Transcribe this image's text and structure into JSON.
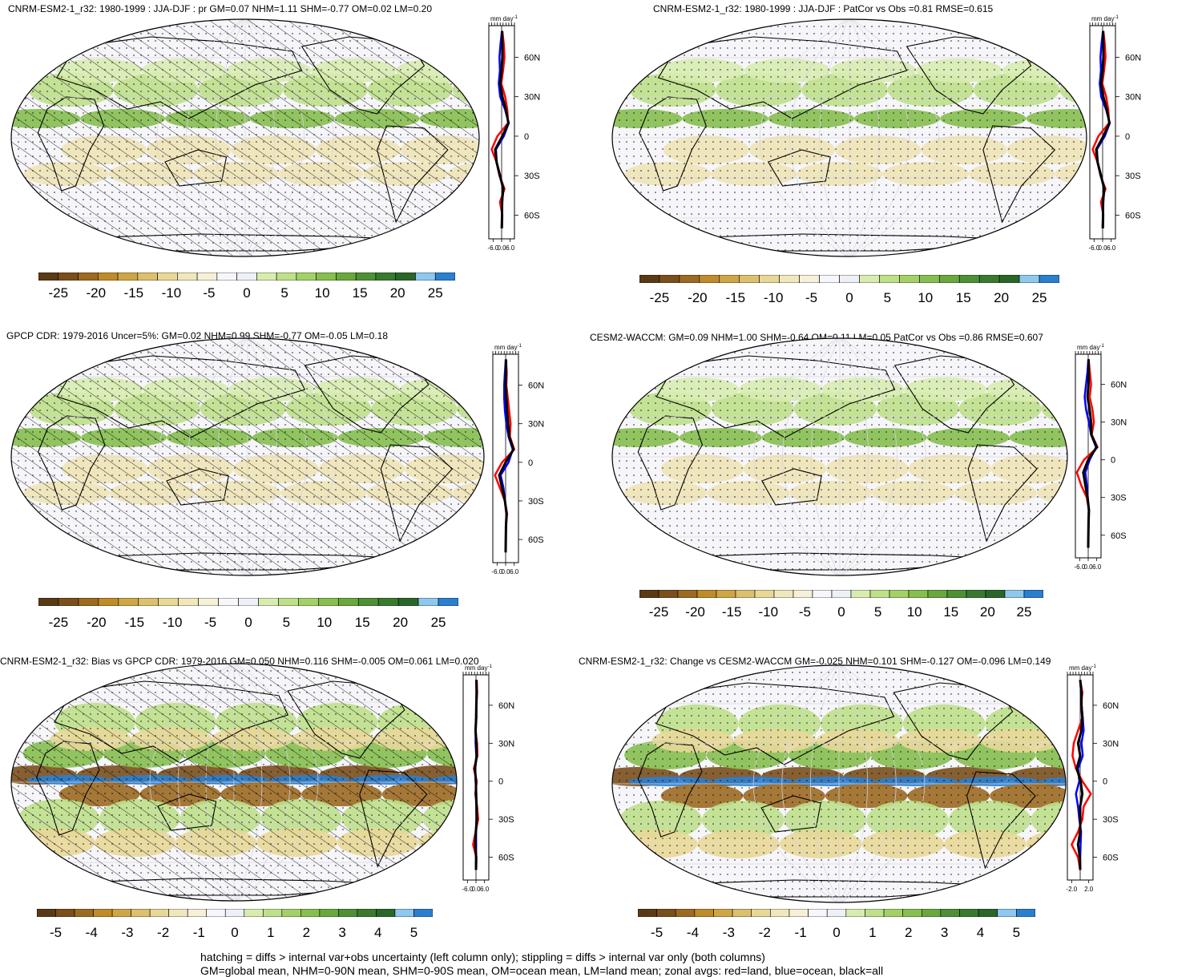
{
  "footer": {
    "line1": "hatching = diffs > internal var+obs uncertainty (left column only); stippling = diffs > internal var only (both columns)",
    "line2": "GM=global mean, NHM=0-90N mean, SHM=0-90S mean, OM=ocean mean, LM=land mean; zonal avgs: red=land, blue=ocean, black=all"
  },
  "colors": {
    "land": "#ff0000",
    "ocean": "#0000ff",
    "all": "#000000",
    "palette": [
      "#5a3a14",
      "#7a4f1c",
      "#9c6a22",
      "#c08b2a",
      "#cfa645",
      "#dcc06e",
      "#e8d898",
      "#f1e7bd",
      "#f6f0d8",
      "#f7f7fb",
      "#eef0f8",
      "#d8ecb0",
      "#bfe08a",
      "#a3d168",
      "#86bf4f",
      "#6aa83e",
      "#4f9036",
      "#3a7a2f",
      "#2a6628",
      "#8ec8ee",
      "#2b7fd0"
    ]
  },
  "panels": [
    {
      "id": "p1",
      "title": "CNRM-ESM2-1_r32: 1980-1999 : JJA-DJF : pr GM=0.07 NHM=1.11 SHM=-0.77 OM=0.02 LM=0.20",
      "units": "mm day",
      "units_sup": "-1",
      "colorbar_labels": [
        "-25",
        "-20",
        "-15",
        "-10",
        "-5",
        "0",
        "5",
        "10",
        "15",
        "20",
        "25"
      ],
      "lat_labels": [
        "60N",
        "30N",
        "0",
        "30S",
        "60S"
      ],
      "x_ticks": [
        "-6.0",
        "0.0",
        "6.0"
      ],
      "chart_data": {
        "type": "line",
        "xlim": [
          -9,
          9
        ],
        "ylim": [
          -78,
          84
        ],
        "series": [
          {
            "color_key": "land",
            "lat": [
              80,
              70,
              60,
              50,
              40,
              30,
              20,
              10,
              0,
              -10,
              -20,
              -30,
              -40,
              -50,
              -60,
              -70
            ],
            "values": [
              0.5,
              1.5,
              2.0,
              1.0,
              -0.2,
              2.5,
              4.0,
              4.5,
              -3.0,
              -7.0,
              -3.5,
              -1.5,
              2.0,
              -1.2,
              0.5,
              0.2
            ]
          },
          {
            "color_key": "ocean",
            "lat": [
              80,
              70,
              60,
              50,
              40,
              30,
              20,
              10,
              0,
              -10,
              -20,
              -30,
              -40,
              -50,
              -60,
              -70
            ],
            "values": [
              0.2,
              -0.8,
              -1.5,
              -1.2,
              -2.0,
              -1.0,
              2.5,
              5.0,
              1.5,
              -4.0,
              -3.5,
              -1.0,
              1.0,
              0.5,
              0.3,
              0.0
            ]
          },
          {
            "color_key": "all",
            "lat": [
              80,
              70,
              60,
              50,
              40,
              30,
              20,
              10,
              0,
              -10,
              -20,
              -30,
              -40,
              -50,
              -60,
              -70
            ],
            "values": [
              0.3,
              0.5,
              0.5,
              0.0,
              -1.0,
              0.5,
              3.0,
              4.8,
              0.5,
              -4.5,
              -3.5,
              -1.2,
              1.2,
              0.2,
              0.3,
              0.1
            ]
          }
        ]
      }
    },
    {
      "id": "p2",
      "title": "CNRM-ESM2-1_r32: 1980-1999 : JJA-DJF : PatCor vs Obs =0.81 RMSE=0.615",
      "units": "mm day",
      "units_sup": "-1",
      "colorbar_labels": [
        "-25",
        "-20",
        "-15",
        "-10",
        "-5",
        "0",
        "5",
        "10",
        "15",
        "20",
        "25"
      ],
      "lat_labels": [
        "60N",
        "30N",
        "0",
        "30S",
        "60S"
      ],
      "x_ticks": [
        "-6.0",
        "0.0",
        "6.0"
      ],
      "chart_data": {
        "type": "line",
        "xlim": [
          -9,
          9
        ],
        "ylim": [
          -78,
          84
        ],
        "series": [
          {
            "color_key": "land",
            "lat": [
              80,
              70,
              60,
              50,
              40,
              30,
              20,
              10,
              0,
              -10,
              -20,
              -30,
              -40,
              -50,
              -60,
              -70
            ],
            "values": [
              0.5,
              1.5,
              2.0,
              1.0,
              -0.2,
              2.5,
              4.0,
              4.5,
              -3.0,
              -7.0,
              -3.5,
              -1.5,
              2.0,
              -1.2,
              0.5,
              0.2
            ]
          },
          {
            "color_key": "ocean",
            "lat": [
              80,
              70,
              60,
              50,
              40,
              30,
              20,
              10,
              0,
              -10,
              -20,
              -30,
              -40,
              -50,
              -60,
              -70
            ],
            "values": [
              0.2,
              -0.8,
              -1.5,
              -1.2,
              -2.0,
              -1.0,
              2.5,
              5.0,
              1.5,
              -4.0,
              -3.5,
              -1.0,
              1.0,
              0.5,
              0.3,
              0.0
            ]
          },
          {
            "color_key": "all",
            "lat": [
              80,
              70,
              60,
              50,
              40,
              30,
              20,
              10,
              0,
              -10,
              -20,
              -30,
              -40,
              -50,
              -60,
              -70
            ],
            "values": [
              0.3,
              0.5,
              0.5,
              0.0,
              -1.0,
              0.5,
              3.0,
              4.8,
              0.5,
              -4.5,
              -3.5,
              -1.2,
              1.2,
              0.2,
              0.3,
              0.1
            ]
          }
        ]
      }
    },
    {
      "id": "p3",
      "title": "GPCP CDR: 1979-2016 Uncer=5%: GM=0.02 NHM=0.99 SHM=-0.77 OM=-0.05 LM=0.18",
      "units": "mm day",
      "units_sup": "-1",
      "colorbar_labels": [
        "-25",
        "-20",
        "-15",
        "-10",
        "-5",
        "0",
        "5",
        "10",
        "15",
        "20",
        "25"
      ],
      "lat_labels": [
        "60N",
        "30N",
        "0",
        "30S",
        "60S"
      ],
      "x_ticks": [
        "-6.0",
        "0.0",
        "6.0"
      ],
      "chart_data": {
        "type": "line",
        "xlim": [
          -9,
          9
        ],
        "ylim": [
          -78,
          84
        ],
        "series": [
          {
            "color_key": "land",
            "lat": [
              80,
              70,
              60,
              50,
              40,
              30,
              20,
              10,
              0,
              -10,
              -20,
              -30,
              -40,
              -50,
              -60,
              -70
            ],
            "values": [
              0.2,
              0.8,
              0.5,
              1.5,
              2.5,
              3.5,
              3.0,
              6.0,
              -2.5,
              -7.5,
              -4.0,
              -0.5,
              1.0,
              0.2,
              0.1,
              0.0
            ]
          },
          {
            "color_key": "ocean",
            "lat": [
              80,
              70,
              60,
              50,
              40,
              30,
              20,
              10,
              0,
              -10,
              -20,
              -30,
              -40,
              -50,
              -60,
              -70
            ],
            "values": [
              0.1,
              -0.5,
              -1.0,
              -1.0,
              -0.5,
              0.5,
              2.0,
              5.0,
              2.0,
              -3.5,
              -1.5,
              -0.5,
              0.5,
              0.2,
              0.1,
              0.0
            ]
          },
          {
            "color_key": "all",
            "lat": [
              80,
              70,
              60,
              50,
              40,
              30,
              20,
              10,
              0,
              -10,
              -20,
              -30,
              -40,
              -50,
              -60,
              -70
            ],
            "values": [
              0.2,
              0.2,
              0.0,
              0.5,
              1.0,
              1.8,
              2.5,
              5.5,
              0.0,
              -4.5,
              -2.5,
              -0.5,
              0.7,
              0.2,
              0.1,
              0.0
            ]
          }
        ]
      }
    },
    {
      "id": "p4",
      "title": "CESM2-WACCM: GM=0.09 NHM=1.00 SHM=-0.64 OM=0.11 LM=0.05 PatCor vs Obs =0.86 RMSE=0.607",
      "units": "mm day",
      "units_sup": "-1",
      "colorbar_labels": [
        "-25",
        "-20",
        "-15",
        "-10",
        "-5",
        "0",
        "5",
        "10",
        "15",
        "20",
        "25"
      ],
      "lat_labels": [
        "60N",
        "30N",
        "0",
        "30S",
        "60S"
      ],
      "x_ticks": [
        "-6.0",
        "0.0",
        "6.0"
      ],
      "chart_data": {
        "type": "line",
        "xlim": [
          -9,
          9
        ],
        "ylim": [
          -78,
          84
        ],
        "series": [
          {
            "color_key": "land",
            "lat": [
              80,
              70,
              60,
              50,
              40,
              30,
              20,
              10,
              0,
              -10,
              -20,
              -30,
              -40,
              -50,
              -60,
              -70
            ],
            "values": [
              0.3,
              1.2,
              2.0,
              1.0,
              3.0,
              4.0,
              2.5,
              6.5,
              -3.0,
              -8.0,
              -5.0,
              -1.0,
              0.5,
              0.2,
              0.1,
              0.0
            ]
          },
          {
            "color_key": "ocean",
            "lat": [
              80,
              70,
              60,
              50,
              40,
              30,
              20,
              10,
              0,
              -10,
              -20,
              -30,
              -40,
              -50,
              -60,
              -70
            ],
            "values": [
              0.1,
              -0.5,
              -1.5,
              -2.5,
              -1.5,
              0.5,
              2.0,
              5.5,
              1.0,
              -2.0,
              -1.0,
              -0.3,
              0.4,
              0.2,
              0.1,
              0.0
            ]
          },
          {
            "color_key": "all",
            "lat": [
              80,
              70,
              60,
              50,
              40,
              30,
              20,
              10,
              0,
              -10,
              -20,
              -30,
              -40,
              -50,
              -60,
              -70
            ],
            "values": [
              0.2,
              0.3,
              0.2,
              -0.5,
              1.0,
              2.0,
              2.2,
              6.0,
              0.0,
              -3.5,
              -2.0,
              -0.5,
              0.5,
              0.2,
              0.1,
              0.0
            ]
          }
        ]
      }
    },
    {
      "id": "p5",
      "title": "CNRM-ESM2-1_r32: Bias vs GPCP CDR: 1979-2016 GM=0.050 NHM=0.116 SHM=-0.005 OM=0.061 LM=0.020",
      "units": "mm day",
      "units_sup": "-1",
      "colorbar_labels": [
        "-5",
        "-4",
        "-3",
        "-2",
        "-1",
        "0",
        "1",
        "2",
        "3",
        "4",
        "5"
      ],
      "lat_labels": [
        "60N",
        "30N",
        "0",
        "30S",
        "60S"
      ],
      "x_ticks": [
        "-6.0",
        "0.0",
        "6.0"
      ],
      "chart_data": {
        "type": "line",
        "xlim": [
          -9,
          9
        ],
        "ylim": [
          -78,
          84
        ],
        "series": [
          {
            "color_key": "land",
            "lat": [
              80,
              70,
              60,
              50,
              40,
              30,
              20,
              10,
              0,
              -10,
              -20,
              -30,
              -40,
              -50,
              -60,
              -70
            ],
            "values": [
              0.5,
              0.8,
              0.2,
              0.3,
              -0.5,
              0.8,
              1.0,
              -1.5,
              0.5,
              -0.5,
              0.8,
              1.5,
              -0.3,
              -2.0,
              0.3,
              0.1
            ]
          },
          {
            "color_key": "ocean",
            "lat": [
              80,
              70,
              60,
              50,
              40,
              30,
              20,
              10,
              0,
              -10,
              -20,
              -30,
              -40,
              -50,
              -60,
              -70
            ],
            "values": [
              0.2,
              0.3,
              0.3,
              0.0,
              -0.2,
              -0.3,
              0.2,
              -0.5,
              -0.3,
              0.3,
              0.2,
              0.2,
              0.0,
              0.1,
              0.0,
              0.0
            ]
          },
          {
            "color_key": "all",
            "lat": [
              80,
              70,
              60,
              50,
              40,
              30,
              20,
              10,
              0,
              -10,
              -20,
              -30,
              -40,
              -50,
              -60,
              -70
            ],
            "values": [
              0.3,
              0.5,
              0.2,
              0.1,
              -0.3,
              0.2,
              0.5,
              -0.8,
              0.0,
              0.0,
              0.4,
              0.6,
              -0.1,
              -0.5,
              0.1,
              0.0
            ]
          }
        ]
      }
    },
    {
      "id": "p6",
      "title": "CNRM-ESM2-1_r32: Change vs CESM2-WACCM GM=-0.025 NHM=0.101 SHM=-0.127 OM=-0.096 LM=0.149",
      "units": "mm day",
      "units_sup": "-1",
      "colorbar_labels": [
        "-5",
        "-4",
        "-3",
        "-2",
        "-1",
        "0",
        "1",
        "2",
        "3",
        "4",
        "5"
      ],
      "lat_labels": [
        "60N",
        "30N",
        "0",
        "30S",
        "60S"
      ],
      "x_ticks": [
        "-2.0",
        "2.0"
      ],
      "chart_data": {
        "type": "line",
        "xlim": [
          -3,
          3
        ],
        "ylim": [
          -78,
          84
        ],
        "series": [
          {
            "color_key": "land",
            "lat": [
              80,
              70,
              60,
              50,
              40,
              30,
              20,
              10,
              0,
              -10,
              -20,
              -30,
              -40,
              -50,
              -60,
              -70
            ],
            "values": [
              0.0,
              0.5,
              0.2,
              0.5,
              -0.5,
              -1.5,
              -1.8,
              -1.0,
              0.5,
              2.5,
              0.8,
              0.5,
              -0.5,
              -2.0,
              -0.5,
              0.0
            ]
          },
          {
            "color_key": "ocean",
            "lat": [
              80,
              70,
              60,
              50,
              40,
              30,
              20,
              10,
              0,
              -10,
              -20,
              -30,
              -40,
              -50,
              -60,
              -70
            ],
            "values": [
              0.0,
              0.2,
              0.3,
              0.6,
              0.8,
              0.3,
              0.6,
              -0.5,
              -0.2,
              -1.0,
              -0.5,
              -0.2,
              0.2,
              0.1,
              0.0,
              0.0
            ]
          },
          {
            "color_key": "all",
            "lat": [
              80,
              70,
              60,
              50,
              40,
              30,
              20,
              10,
              0,
              -10,
              -20,
              -30,
              -40,
              -50,
              -60,
              -70
            ],
            "values": [
              0.0,
              0.3,
              0.3,
              0.5,
              0.3,
              -0.5,
              0.0,
              -0.8,
              0.1,
              0.5,
              0.0,
              0.0,
              0.0,
              -0.5,
              -0.1,
              0.0
            ]
          }
        ]
      }
    }
  ]
}
